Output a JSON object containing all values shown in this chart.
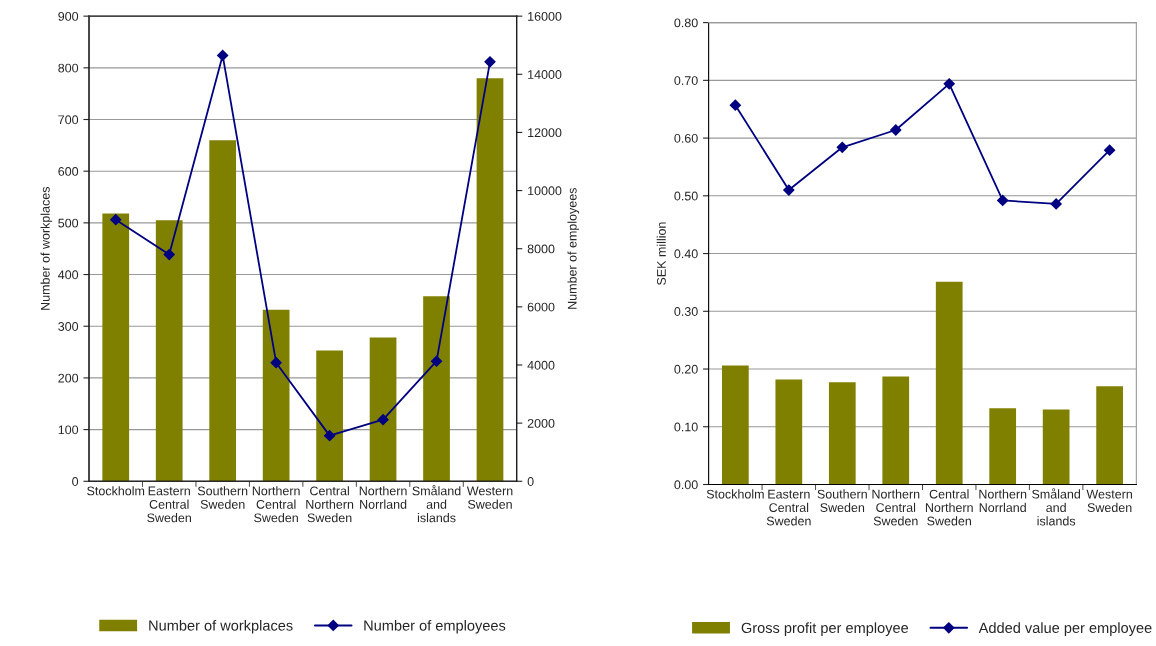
{
  "chart_data": [
    {
      "type": "bar",
      "categories": [
        "Stockholm",
        "Eastern Central Sweden",
        "Southern Sweden",
        "Northern Central Sweden",
        "Central Northern Sweden",
        "Northern Norrland",
        "Småland and islands",
        "Western Sweden"
      ],
      "ylabel": "Number of workplaces",
      "y2label": "Number of employees",
      "ylim": [
        0,
        900
      ],
      "yticks": [
        0,
        100,
        200,
        300,
        400,
        500,
        600,
        700,
        800,
        900
      ],
      "y2lim": [
        0,
        16000
      ],
      "y2ticks": [
        0,
        2000,
        4000,
        6000,
        8000,
        10000,
        12000,
        14000,
        16000
      ],
      "grid": "y",
      "legend": "bottom",
      "series": [
        {
          "name": "Number of workplaces",
          "color": "#808000",
          "values": [
            518,
            505,
            660,
            332,
            253,
            278,
            358,
            780
          ]
        },
        {
          "name": "Number of employees",
          "type": "line",
          "axis": "y2",
          "color": "#000080",
          "marker": "diamond",
          "values": [
            9000,
            7800,
            14650,
            4080,
            1570,
            2120,
            4130,
            14430
          ]
        }
      ]
    },
    {
      "type": "bar",
      "categories": [
        "Stockholm",
        "Eastern Central Sweden",
        "Southern Sweden",
        "Northern Central Sweden",
        "Central Northern Sweden",
        "Northern Norrland",
        "Småland and islands",
        "Western Sweden"
      ],
      "ylabel": "SEK million",
      "ylim": [
        0,
        0.8
      ],
      "yticks": [
        {
          "value": 0,
          "label": "0.00"
        },
        {
          "value": 0.1,
          "label": "0.10"
        },
        {
          "value": 0.2,
          "label": "0.20"
        },
        {
          "value": 0.3,
          "label": "0.30"
        },
        {
          "value": 0.4,
          "label": "0.40"
        },
        {
          "value": 0.5,
          "label": "0.50"
        },
        {
          "value": 0.6,
          "label": "0.60"
        },
        {
          "value": 0.7,
          "label": "0.70"
        },
        {
          "value": 0.8,
          "label": "0.80"
        }
      ],
      "grid": "y",
      "legend": "bottom",
      "series": [
        {
          "name": "Gross profit per employee",
          "color": "#808000",
          "values": [
            0.206,
            0.182,
            0.177,
            0.187,
            0.351,
            0.132,
            0.13,
            0.17
          ]
        },
        {
          "name": "Added value per employee",
          "type": "line",
          "color": "#000080",
          "marker": "diamond",
          "values": [
            0.657,
            0.51,
            0.584,
            0.614,
            0.694,
            0.492,
            0.486,
            0.579
          ]
        }
      ]
    }
  ]
}
